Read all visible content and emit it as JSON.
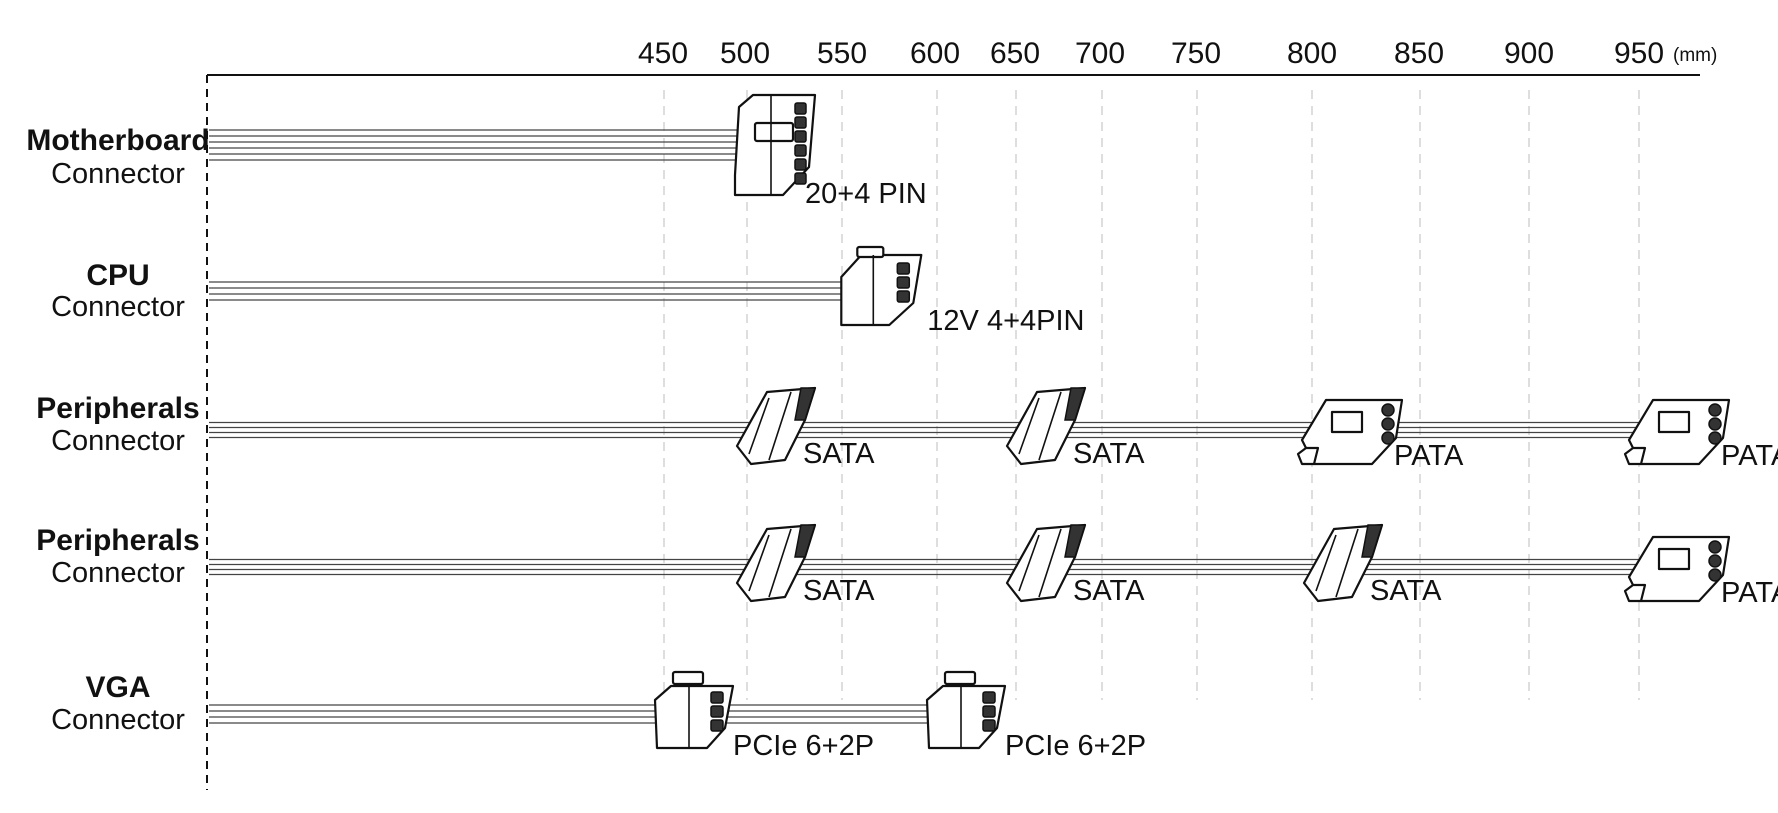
{
  "chart_data": {
    "type": "diagram",
    "unit": "(mm)",
    "ticks": [
      450,
      500,
      550,
      600,
      650,
      700,
      750,
      800,
      850,
      900,
      950
    ],
    "rows": [
      {
        "name": "Motherboard",
        "subtitle": "Connector",
        "connectors": [
          {
            "position_mm": 500,
            "kind": "atx24",
            "label": "20+4 PIN"
          }
        ]
      },
      {
        "name": "CPU",
        "subtitle": "Connector",
        "connectors": [
          {
            "position_mm": 555,
            "kind": "eps8",
            "label": "12V 4+4PIN"
          }
        ]
      },
      {
        "name": "Peripherals",
        "subtitle": "Connector",
        "connectors": [
          {
            "position_mm": 500,
            "kind": "sata",
            "label": "SATA"
          },
          {
            "position_mm": 650,
            "kind": "sata",
            "label": "SATA"
          },
          {
            "position_mm": 800,
            "kind": "pata",
            "label": "PATA"
          },
          {
            "position_mm": 950,
            "kind": "pata",
            "label": "PATA"
          }
        ]
      },
      {
        "name": "Peripherals",
        "subtitle": "Connector",
        "connectors": [
          {
            "position_mm": 500,
            "kind": "sata",
            "label": "SATA"
          },
          {
            "position_mm": 650,
            "kind": "sata",
            "label": "SATA"
          },
          {
            "position_mm": 800,
            "kind": "sata",
            "label": "SATA"
          },
          {
            "position_mm": 950,
            "kind": "pata",
            "label": "PATA"
          }
        ]
      },
      {
        "name": "VGA",
        "subtitle": "Connector",
        "connectors": [
          {
            "position_mm": 450,
            "kind": "pcie8",
            "label": "PCIe 6+2P"
          },
          {
            "position_mm": 600,
            "kind": "pcie8",
            "label": "PCIe 6+2P"
          }
        ]
      }
    ]
  }
}
